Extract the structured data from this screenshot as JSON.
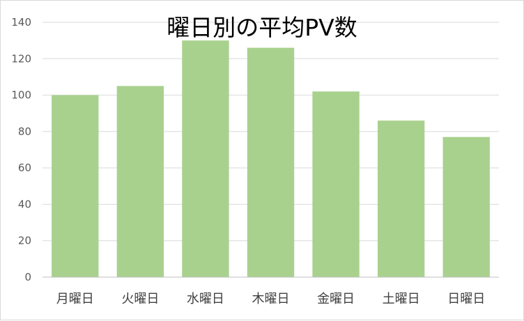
{
  "chart_data": {
    "type": "bar",
    "title": "曜日別の平均PV数",
    "xlabel": "",
    "ylabel": "",
    "categories": [
      "月曜日",
      "火曜日",
      "水曜日",
      "木曜日",
      "金曜日",
      "土曜日",
      "日曜日"
    ],
    "values": [
      100,
      105,
      130,
      126,
      102,
      86,
      77
    ],
    "ylim": [
      0,
      140
    ],
    "yticks": [
      0,
      20,
      40,
      60,
      80,
      100,
      120,
      140
    ],
    "grid": true,
    "legend": "none",
    "colors": {
      "bar": "#a9d18e",
      "grid": "#d9d9d9",
      "axis": "#bfbfbf",
      "tick_text": "#595959",
      "category_text": "#404040"
    }
  }
}
